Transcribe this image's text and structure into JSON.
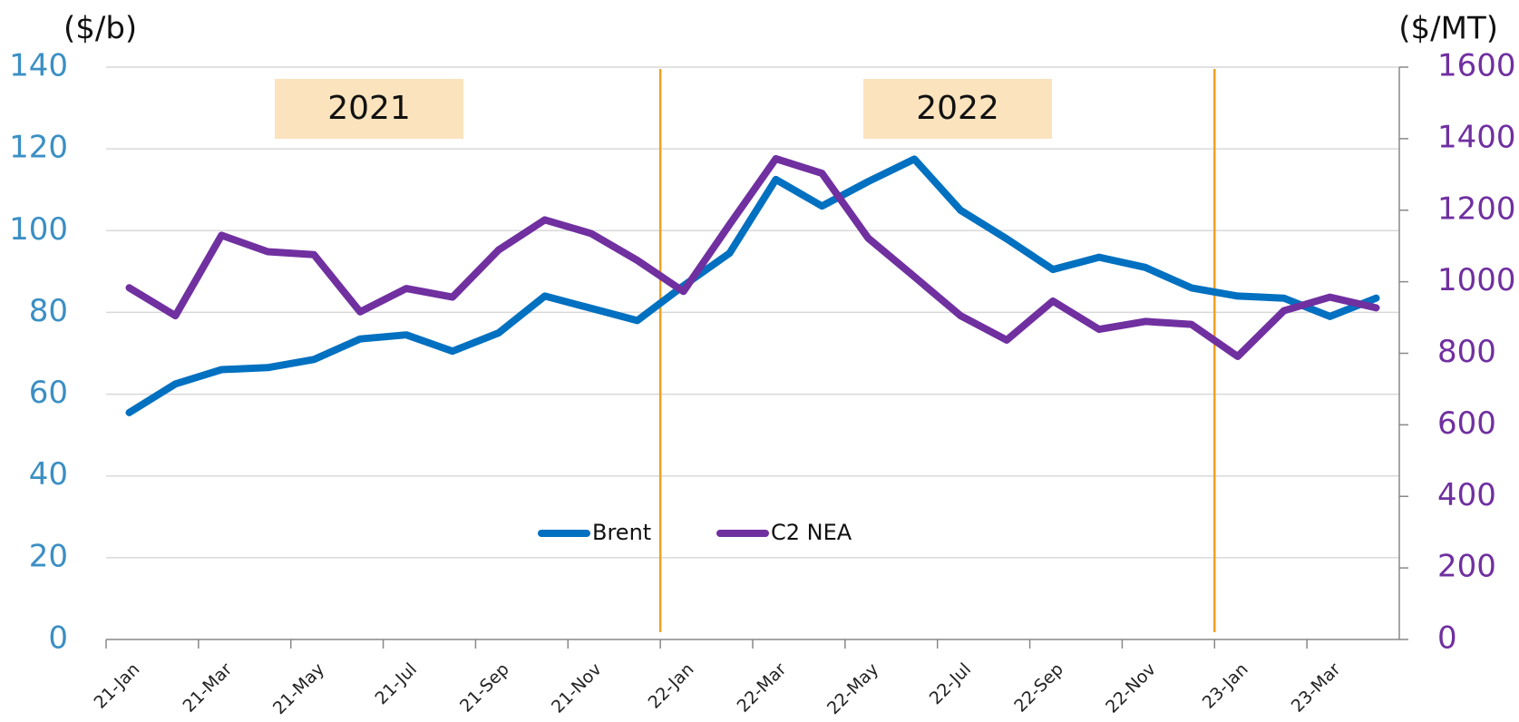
{
  "chart_data": {
    "type": "line",
    "y_label": "($/b)",
    "y2_label": "($/MT)",
    "annotations": [
      "2021",
      "2022"
    ],
    "categories": [
      "21-Jan",
      null,
      "21-Mar",
      null,
      "21-May",
      null,
      "21-Jul",
      null,
      "21-Sep",
      null,
      "21-Nov",
      null,
      "22-Jan",
      null,
      "22-Mar",
      null,
      "22-May",
      null,
      "22-Jul",
      null,
      "22-Sep",
      null,
      "22-Nov",
      null,
      "23-Jan",
      null,
      "23-Mar",
      null
    ],
    "series": [
      {
        "name": "Brent",
        "color": "#0070c0",
        "values": [
          55.5,
          62.5,
          66,
          66.5,
          68.5,
          73.5,
          74.5,
          70.5,
          75,
          84,
          81,
          78,
          86.5,
          94.5,
          112.5,
          106,
          112,
          117.5,
          105,
          98,
          90.5,
          93.5,
          91,
          86,
          84,
          83.5,
          79,
          83.5
        ]
      },
      {
        "name": "C2 NEA",
        "color": "#7030a0",
        "axis": "y2",
        "values": [
          983,
          905,
          1130,
          1084,
          1076,
          916,
          981,
          957,
          1089,
          1173,
          1135,
          1060,
          973,
          1160,
          1344,
          1303,
          1122,
          1014,
          905,
          837,
          946,
          867,
          889,
          881,
          791,
          919,
          957,
          927
        ]
      }
    ],
    "ylim": [
      0,
      140
    ],
    "yticks": [
      0,
      20,
      40,
      60,
      80,
      100,
      120,
      140
    ],
    "y2lim": [
      0,
      1600
    ],
    "y2ticks": [
      0,
      200,
      400,
      600,
      800,
      1000,
      1200,
      1400,
      1600
    ],
    "grid": true,
    "legend": "bottom"
  }
}
